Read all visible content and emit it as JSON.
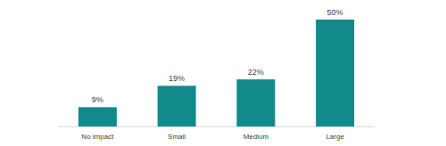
{
  "chart_data": {
    "type": "bar",
    "categories": [
      "No impact",
      "Small",
      "Medium",
      "Large"
    ],
    "values": [
      9,
      19,
      22,
      50
    ],
    "value_labels": [
      "9%",
      "19%",
      "22%",
      "50%"
    ],
    "color": "#12898b",
    "ylim": [
      0,
      50
    ],
    "data_labels": true,
    "tick_labels": "x",
    "grid": false
  }
}
